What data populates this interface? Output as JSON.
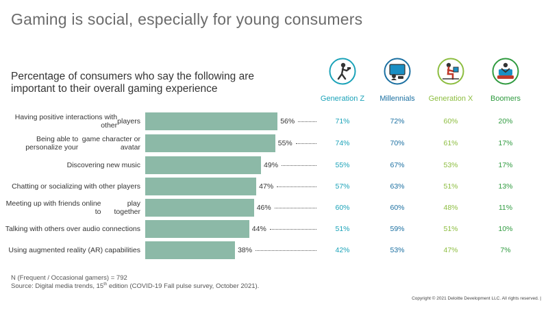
{
  "title": "Gaming is social, especially for young consumers",
  "colors": {
    "bar": "#8cb9a7",
    "genz": "#1aa2b8",
    "millennials": "#1a6fa1",
    "genx": "#8cbd3f",
    "boomers": "#2e9a3e"
  },
  "chart_data": {
    "type": "bar",
    "orientation": "horizontal",
    "title": "Percentage of consumers who say the following are important to their overall gaming experience",
    "xlim": [
      0,
      100
    ],
    "categories": [
      "Having positive interactions with other players",
      "Being able to personalize your game character or avatar",
      "Discovering new music",
      "Chatting or socializing with other players",
      "Meeting up with friends online to play together",
      "Talking with others over audio connections",
      "Using augmented reality (AR) capabilities"
    ],
    "label_lines": [
      [
        "Having positive interactions with other",
        "players"
      ],
      [
        "Being able to personalize your",
        "game character or avatar"
      ],
      [
        "Discovering new music"
      ],
      [
        "Chatting or socializing with other players"
      ],
      [
        "Meeting up with friends online to",
        "play together"
      ],
      [
        "Talking with others over audio connections"
      ],
      [
        "Using augmented reality (AR) capabilities"
      ]
    ],
    "values": [
      56,
      55,
      49,
      47,
      46,
      44,
      38
    ],
    "value_labels": [
      "56%",
      "55%",
      "49%",
      "47%",
      "46%",
      "44%",
      "38%"
    ],
    "series": [
      {
        "name": "Generation Z",
        "icon": "gamer-genz-icon",
        "values": [
          71,
          74,
          55,
          57,
          60,
          51,
          42
        ],
        "labels": [
          "71%",
          "74%",
          "55%",
          "57%",
          "60%",
          "51%",
          "42%"
        ]
      },
      {
        "name": "Millennials",
        "icon": "gamer-millennials-icon",
        "values": [
          72,
          70,
          67,
          63,
          60,
          59,
          53
        ],
        "labels": [
          "72%",
          "70%",
          "67%",
          "63%",
          "60%",
          "59%",
          "53%"
        ]
      },
      {
        "name": "Generation X",
        "icon": "gamer-genx-icon",
        "values": [
          60,
          61,
          53,
          51,
          48,
          51,
          47
        ],
        "labels": [
          "60%",
          "61%",
          "53%",
          "51%",
          "48%",
          "51%",
          "47%"
        ]
      },
      {
        "name": "Boomers",
        "icon": "gamer-boomers-icon",
        "values": [
          20,
          17,
          17,
          13,
          11,
          10,
          7
        ],
        "labels": [
          "20%",
          "17%",
          "17%",
          "13%",
          "11%",
          "10%",
          "7%"
        ]
      }
    ]
  },
  "notes": {
    "n": "N (Frequent / Occasional gamers) = 792",
    "source_prefix": "Source: Digital media trends, 15",
    "source_sup": "th",
    "source_suffix": " edition (COVID-19 Fall pulse survey, October 2021)."
  },
  "copyright": "Copyright © 2021 Deloitte Development LLC. All rights reserved.  |"
}
